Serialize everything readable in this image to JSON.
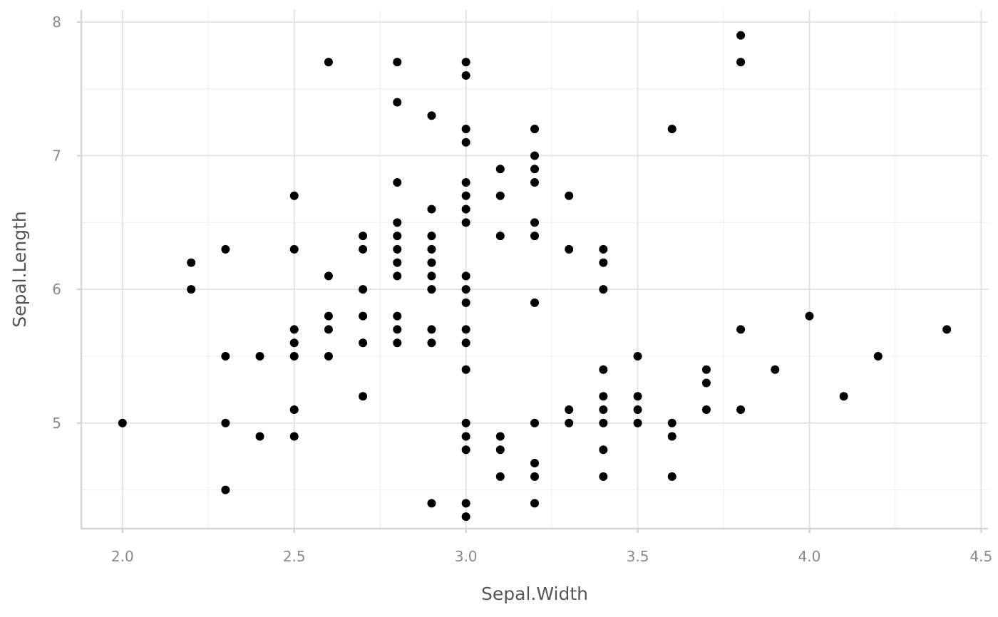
{
  "chart_data": {
    "type": "scatter",
    "title": "",
    "xlabel": "Sepal.Width",
    "ylabel": "Sepal.Length",
    "xlim": [
      1.88,
      4.52
    ],
    "ylim": [
      4.21,
      8.09
    ],
    "x_ticks": [
      2.0,
      2.5,
      3.0,
      3.5,
      4.0,
      4.5
    ],
    "x_tick_labels": [
      "2.0",
      "2.5",
      "3.0",
      "3.5",
      "4.0",
      "4.5"
    ],
    "y_ticks": [
      5,
      6,
      7,
      8
    ],
    "y_tick_labels": [
      "5",
      "6",
      "7",
      "8"
    ],
    "grid": true,
    "point_color": "#000000",
    "points": [
      {
        "x": 2.0,
        "y": 5.0
      },
      {
        "x": 2.2,
        "y": 6.2
      },
      {
        "x": 2.2,
        "y": 6.0
      },
      {
        "x": 2.3,
        "y": 6.3
      },
      {
        "x": 2.3,
        "y": 5.5
      },
      {
        "x": 2.3,
        "y": 5.0
      },
      {
        "x": 2.3,
        "y": 4.5
      },
      {
        "x": 2.4,
        "y": 5.5
      },
      {
        "x": 2.4,
        "y": 4.9
      },
      {
        "x": 2.5,
        "y": 6.7
      },
      {
        "x": 2.5,
        "y": 6.3
      },
      {
        "x": 2.5,
        "y": 5.7
      },
      {
        "x": 2.5,
        "y": 5.6
      },
      {
        "x": 2.5,
        "y": 5.5
      },
      {
        "x": 2.5,
        "y": 5.1
      },
      {
        "x": 2.5,
        "y": 4.9
      },
      {
        "x": 2.6,
        "y": 7.7
      },
      {
        "x": 2.6,
        "y": 6.1
      },
      {
        "x": 2.6,
        "y": 5.8
      },
      {
        "x": 2.6,
        "y": 5.7
      },
      {
        "x": 2.6,
        "y": 5.5
      },
      {
        "x": 2.7,
        "y": 6.4
      },
      {
        "x": 2.7,
        "y": 6.3
      },
      {
        "x": 2.7,
        "y": 6.0
      },
      {
        "x": 2.7,
        "y": 5.8
      },
      {
        "x": 2.7,
        "y": 5.6
      },
      {
        "x": 2.7,
        "y": 5.2
      },
      {
        "x": 2.8,
        "y": 7.7
      },
      {
        "x": 2.8,
        "y": 7.4
      },
      {
        "x": 2.8,
        "y": 6.8
      },
      {
        "x": 2.8,
        "y": 6.5
      },
      {
        "x": 2.8,
        "y": 6.4
      },
      {
        "x": 2.8,
        "y": 6.3
      },
      {
        "x": 2.8,
        "y": 6.2
      },
      {
        "x": 2.8,
        "y": 6.1
      },
      {
        "x": 2.8,
        "y": 5.8
      },
      {
        "x": 2.8,
        "y": 5.7
      },
      {
        "x": 2.8,
        "y": 5.6
      },
      {
        "x": 2.9,
        "y": 7.3
      },
      {
        "x": 2.9,
        "y": 6.6
      },
      {
        "x": 2.9,
        "y": 6.4
      },
      {
        "x": 2.9,
        "y": 6.3
      },
      {
        "x": 2.9,
        "y": 6.2
      },
      {
        "x": 2.9,
        "y": 6.1
      },
      {
        "x": 2.9,
        "y": 6.0
      },
      {
        "x": 2.9,
        "y": 5.7
      },
      {
        "x": 2.9,
        "y": 5.6
      },
      {
        "x": 2.9,
        "y": 4.4
      },
      {
        "x": 3.0,
        "y": 7.7
      },
      {
        "x": 3.0,
        "y": 7.6
      },
      {
        "x": 3.0,
        "y": 7.2
      },
      {
        "x": 3.0,
        "y": 7.1
      },
      {
        "x": 3.0,
        "y": 6.8
      },
      {
        "x": 3.0,
        "y": 6.7
      },
      {
        "x": 3.0,
        "y": 6.6
      },
      {
        "x": 3.0,
        "y": 6.5
      },
      {
        "x": 3.0,
        "y": 6.1
      },
      {
        "x": 3.0,
        "y": 6.0
      },
      {
        "x": 3.0,
        "y": 5.9
      },
      {
        "x": 3.0,
        "y": 5.7
      },
      {
        "x": 3.0,
        "y": 5.6
      },
      {
        "x": 3.0,
        "y": 5.4
      },
      {
        "x": 3.0,
        "y": 5.0
      },
      {
        "x": 3.0,
        "y": 4.9
      },
      {
        "x": 3.0,
        "y": 4.8
      },
      {
        "x": 3.0,
        "y": 4.4
      },
      {
        "x": 3.0,
        "y": 4.3
      },
      {
        "x": 3.1,
        "y": 6.9
      },
      {
        "x": 3.1,
        "y": 6.7
      },
      {
        "x": 3.1,
        "y": 6.4
      },
      {
        "x": 3.1,
        "y": 4.9
      },
      {
        "x": 3.1,
        "y": 4.8
      },
      {
        "x": 3.1,
        "y": 4.6
      },
      {
        "x": 3.2,
        "y": 7.2
      },
      {
        "x": 3.2,
        "y": 7.0
      },
      {
        "x": 3.2,
        "y": 6.9
      },
      {
        "x": 3.2,
        "y": 6.8
      },
      {
        "x": 3.2,
        "y": 6.5
      },
      {
        "x": 3.2,
        "y": 6.4
      },
      {
        "x": 3.2,
        "y": 5.9
      },
      {
        "x": 3.2,
        "y": 5.0
      },
      {
        "x": 3.2,
        "y": 4.7
      },
      {
        "x": 3.2,
        "y": 4.6
      },
      {
        "x": 3.2,
        "y": 4.4
      },
      {
        "x": 3.3,
        "y": 6.7
      },
      {
        "x": 3.3,
        "y": 6.3
      },
      {
        "x": 3.3,
        "y": 5.1
      },
      {
        "x": 3.3,
        "y": 5.0
      },
      {
        "x": 3.4,
        "y": 6.3
      },
      {
        "x": 3.4,
        "y": 6.2
      },
      {
        "x": 3.4,
        "y": 6.0
      },
      {
        "x": 3.4,
        "y": 5.4
      },
      {
        "x": 3.4,
        "y": 5.2
      },
      {
        "x": 3.4,
        "y": 5.1
      },
      {
        "x": 3.4,
        "y": 5.0
      },
      {
        "x": 3.4,
        "y": 4.8
      },
      {
        "x": 3.4,
        "y": 4.6
      },
      {
        "x": 3.5,
        "y": 5.5
      },
      {
        "x": 3.5,
        "y": 5.2
      },
      {
        "x": 3.5,
        "y": 5.1
      },
      {
        "x": 3.5,
        "y": 5.0
      },
      {
        "x": 3.6,
        "y": 7.2
      },
      {
        "x": 3.6,
        "y": 5.0
      },
      {
        "x": 3.6,
        "y": 4.9
      },
      {
        "x": 3.6,
        "y": 4.6
      },
      {
        "x": 3.7,
        "y": 5.4
      },
      {
        "x": 3.7,
        "y": 5.3
      },
      {
        "x": 3.7,
        "y": 5.1
      },
      {
        "x": 3.8,
        "y": 7.9
      },
      {
        "x": 3.8,
        "y": 7.7
      },
      {
        "x": 3.8,
        "y": 5.7
      },
      {
        "x": 3.8,
        "y": 5.1
      },
      {
        "x": 3.9,
        "y": 5.4
      },
      {
        "x": 4.0,
        "y": 5.8
      },
      {
        "x": 4.1,
        "y": 5.2
      },
      {
        "x": 4.2,
        "y": 5.5
      },
      {
        "x": 4.4,
        "y": 5.7
      }
    ]
  }
}
